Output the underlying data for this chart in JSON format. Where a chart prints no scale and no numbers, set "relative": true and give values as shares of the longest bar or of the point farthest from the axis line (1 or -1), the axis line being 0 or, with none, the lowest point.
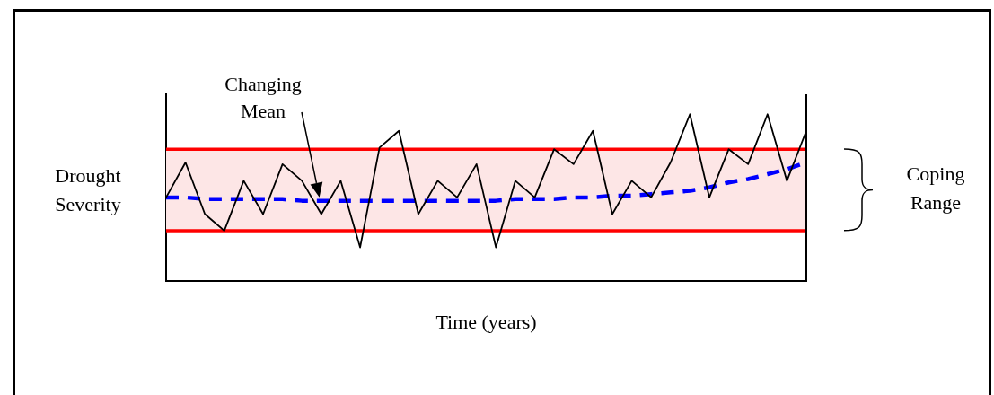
{
  "chart_data": {
    "type": "line",
    "relative": true,
    "xlabel": "Time (years)",
    "ylabel": "Drought Severity",
    "annotations": [
      "Changing Mean",
      "Coping Range"
    ],
    "categories": [
      null,
      null,
      null,
      null,
      null,
      null,
      null,
      null,
      null,
      null,
      null,
      null,
      null,
      null,
      null,
      null,
      null,
      null,
      null,
      null,
      null,
      null,
      null,
      null,
      null,
      null,
      null,
      null,
      null,
      null,
      null,
      null,
      null,
      null
    ],
    "series": [
      {
        "color": "#000000",
        "values": [
          0.5,
          0.71,
          0.4,
          0.3,
          0.6,
          0.4,
          0.7,
          0.6,
          0.4,
          0.6,
          0.2,
          0.8,
          0.9,
          0.4,
          0.6,
          0.5,
          0.7,
          0.2,
          0.6,
          0.5,
          0.79,
          0.7,
          0.9,
          0.4,
          0.6,
          0.5,
          0.71,
          1,
          0.5,
          0.79,
          0.7,
          1,
          0.6,
          0.9
        ]
      },
      {
        "color": "#0000ff",
        "line_style": "dashed",
        "values": [
          0.5,
          0.5,
          0.49,
          0.49,
          0.49,
          0.49,
          0.49,
          0.48,
          0.48,
          0.48,
          0.48,
          0.48,
          0.48,
          0.48,
          0.48,
          0.48,
          0.48,
          0.48,
          0.49,
          0.49,
          0.49,
          0.5,
          0.5,
          0.51,
          0.51,
          0.52,
          0.53,
          0.54,
          0.56,
          0.59,
          0.61,
          0.64,
          0.67,
          0.71
        ]
      }
    ],
    "bands": [
      {
        "axis": "y",
        "from": 0.3,
        "to": 0.79,
        "color": "#fde6e6"
      }
    ],
    "ref_lines": [
      {
        "axis": "y",
        "value": 0.79,
        "color": "#ff0000"
      },
      {
        "axis": "y",
        "value": 0.3,
        "color": "#ff0000"
      }
    ],
    "grid": false,
    "legend": false,
    "marker": "none"
  }
}
